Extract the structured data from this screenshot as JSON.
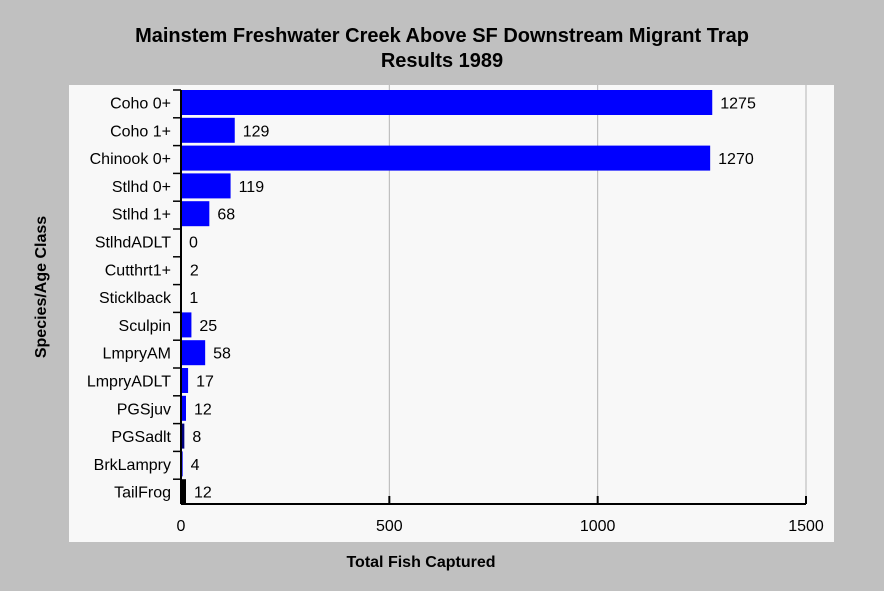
{
  "chart_data": {
    "type": "bar",
    "orientation": "horizontal",
    "title": "Mainstem Freshwater Creek Above SF Downstream Migrant Trap",
    "subtitle": "Results 1989",
    "xlabel": "Total Fish Captured",
    "ylabel": "Species/Age Class",
    "xlim": [
      0,
      1500
    ],
    "xticks": [
      0,
      500,
      1000,
      1500
    ],
    "grid": "vertical",
    "categories": [
      "Coho 0+",
      "Coho 1+",
      "Chinook 0+",
      "Stlhd 0+",
      "Stlhd 1+",
      "StlhdADLT",
      "Cutthrt1+",
      "Sticklback",
      "Sculpin",
      "LmpryAM",
      "LmpryADLT",
      "PGSjuv",
      "PGSadlt",
      "BrkLampry",
      "TailFrog"
    ],
    "values": [
      1275,
      129,
      1270,
      119,
      68,
      0,
      2,
      1,
      25,
      58,
      17,
      12,
      8,
      4,
      12
    ],
    "bar_colors": [
      "#0000ff",
      "#0000ff",
      "#0000ff",
      "#0000ff",
      "#0000ff",
      "#0000ff",
      "#0000ff",
      "#0000ff",
      "#0000ff",
      "#0000ff",
      "#0000ff",
      "#0000ff",
      "#000080",
      "#0000ff",
      "#000000"
    ],
    "colors": {
      "background": "#c0c0c0",
      "plot_background": "#f8f8f8",
      "grid": "#b4b4b4"
    }
  }
}
